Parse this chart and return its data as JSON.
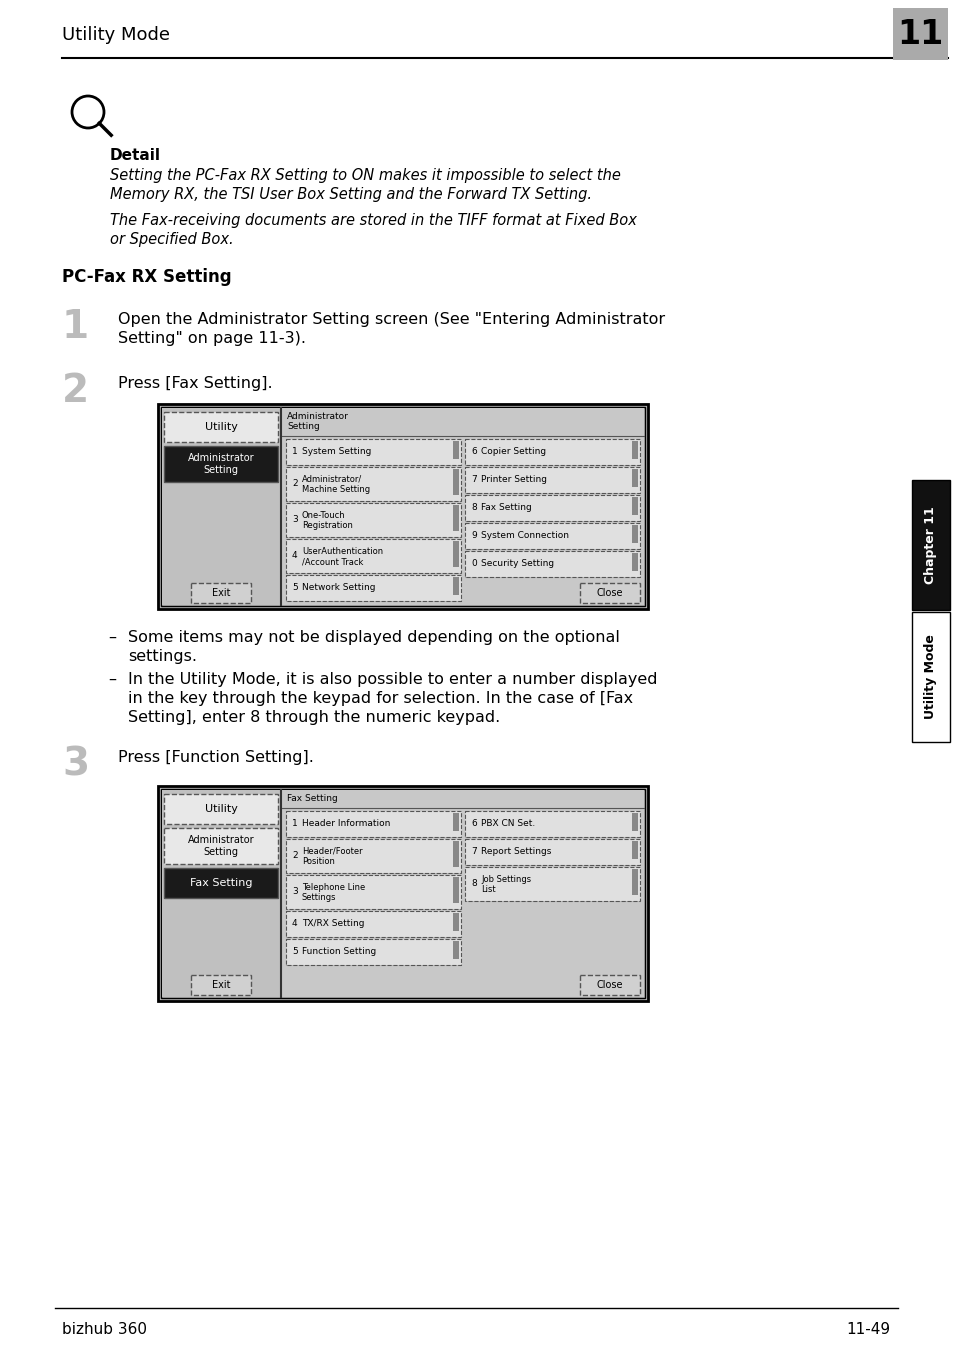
{
  "title_header": "Utility Mode",
  "chapter_num": "11",
  "footer_left": "bizhub 360",
  "footer_right": "11-49",
  "detail_bold": "Detail",
  "detail_italic1": "Setting the PC-Fax RX Setting to ON makes it impossible to select the",
  "detail_italic2": "Memory RX, the TSI User Box Setting and the Forward TX Setting.",
  "detail_italic3": "The Fax-receiving documents are stored in the TIFF format at Fixed Box",
  "detail_italic4": "or Specified Box.",
  "section_title": "PC-Fax RX Setting",
  "step1_num": "1",
  "step1_text1": "Open the Administrator Setting screen (See \"Entering Administrator",
  "step1_text2": "Setting\" on page 11-3).",
  "step2_num": "2",
  "step2_text": "Press [Fax Setting].",
  "step3_num": "3",
  "step3_text": "Press [Function Setting].",
  "bullet1_line1": "Some items may not be displayed depending on the optional",
  "bullet1_line2": "settings.",
  "bullet2_1": "In the Utility Mode, it is also possible to enter a number displayed",
  "bullet2_2": "in the key through the keypad for selection. In the case of [Fax",
  "bullet2_3": "Setting], enter 8 through the numeric keypad.",
  "bg_color": "#ffffff",
  "screen1_admin_buttons_col1": [
    [
      "1",
      "System Setting"
    ],
    [
      "2",
      "Administrator/\nMachine Setting"
    ],
    [
      "3",
      "One-Touch\nRegistration"
    ],
    [
      "4",
      "UserAuthentication\n/Account Track"
    ],
    [
      "5",
      "Network Setting"
    ]
  ],
  "screen1_admin_buttons_col2": [
    [
      "6",
      "Copier Setting"
    ],
    [
      "7",
      "Printer Setting"
    ],
    [
      "8",
      "Fax Setting"
    ],
    [
      "9",
      "System Connection"
    ],
    [
      "0",
      "Security Setting"
    ]
  ],
  "screen2_fax_buttons_col1": [
    [
      "1",
      "Header Information"
    ],
    [
      "2",
      "Header/Footer\nPosition"
    ],
    [
      "3",
      "Telephone Line\nSettings"
    ],
    [
      "4",
      "TX/RX Setting"
    ],
    [
      "5",
      "Function Setting"
    ]
  ],
  "screen2_fax_buttons_col2": [
    [
      "6",
      "PBX CN Set."
    ],
    [
      "7",
      "Report Settings"
    ],
    [
      "8",
      "Job Settings\nList"
    ]
  ]
}
